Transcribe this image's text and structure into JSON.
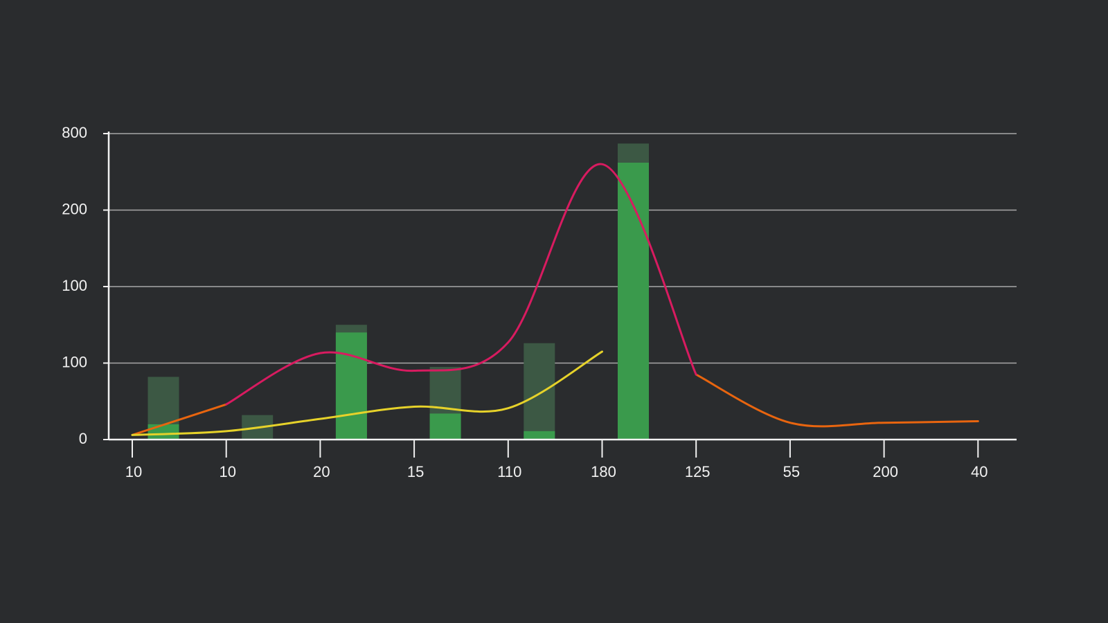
{
  "chart_data": {
    "type": "bar-line",
    "categories": [
      "10",
      "10",
      "20",
      "15",
      "110",
      "180",
      "125",
      "55",
      "200",
      "40"
    ],
    "ylim": [
      0,
      400
    ],
    "yticks": [
      0,
      100,
      {
        "value": 200,
        "label": "100"
      },
      {
        "value": 300,
        "label": "200"
      },
      {
        "value": 400,
        "label": "800"
      }
    ],
    "grid": true,
    "bars": [
      {
        "color": "#3c5844",
        "values": [
          82,
          32,
          150,
          95,
          126,
          387,
          null,
          null,
          null,
          null
        ]
      },
      {
        "color": "#3a9a4c",
        "values": [
          20,
          null,
          140,
          34,
          11,
          362,
          null,
          null,
          null,
          null
        ]
      }
    ],
    "series": [
      {
        "color": "#e8650f",
        "values": [
          6,
          46,
          null,
          null,
          null,
          null,
          85,
          22,
          22,
          24
        ]
      },
      {
        "color": "#d81b60",
        "values": [
          null,
          46,
          113,
          90,
          127,
          360,
          85,
          null,
          null,
          null
        ]
      },
      {
        "color": "#e6d22a",
        "values": [
          6,
          11,
          27,
          43,
          41,
          115,
          null,
          null,
          null,
          null
        ]
      }
    ]
  }
}
